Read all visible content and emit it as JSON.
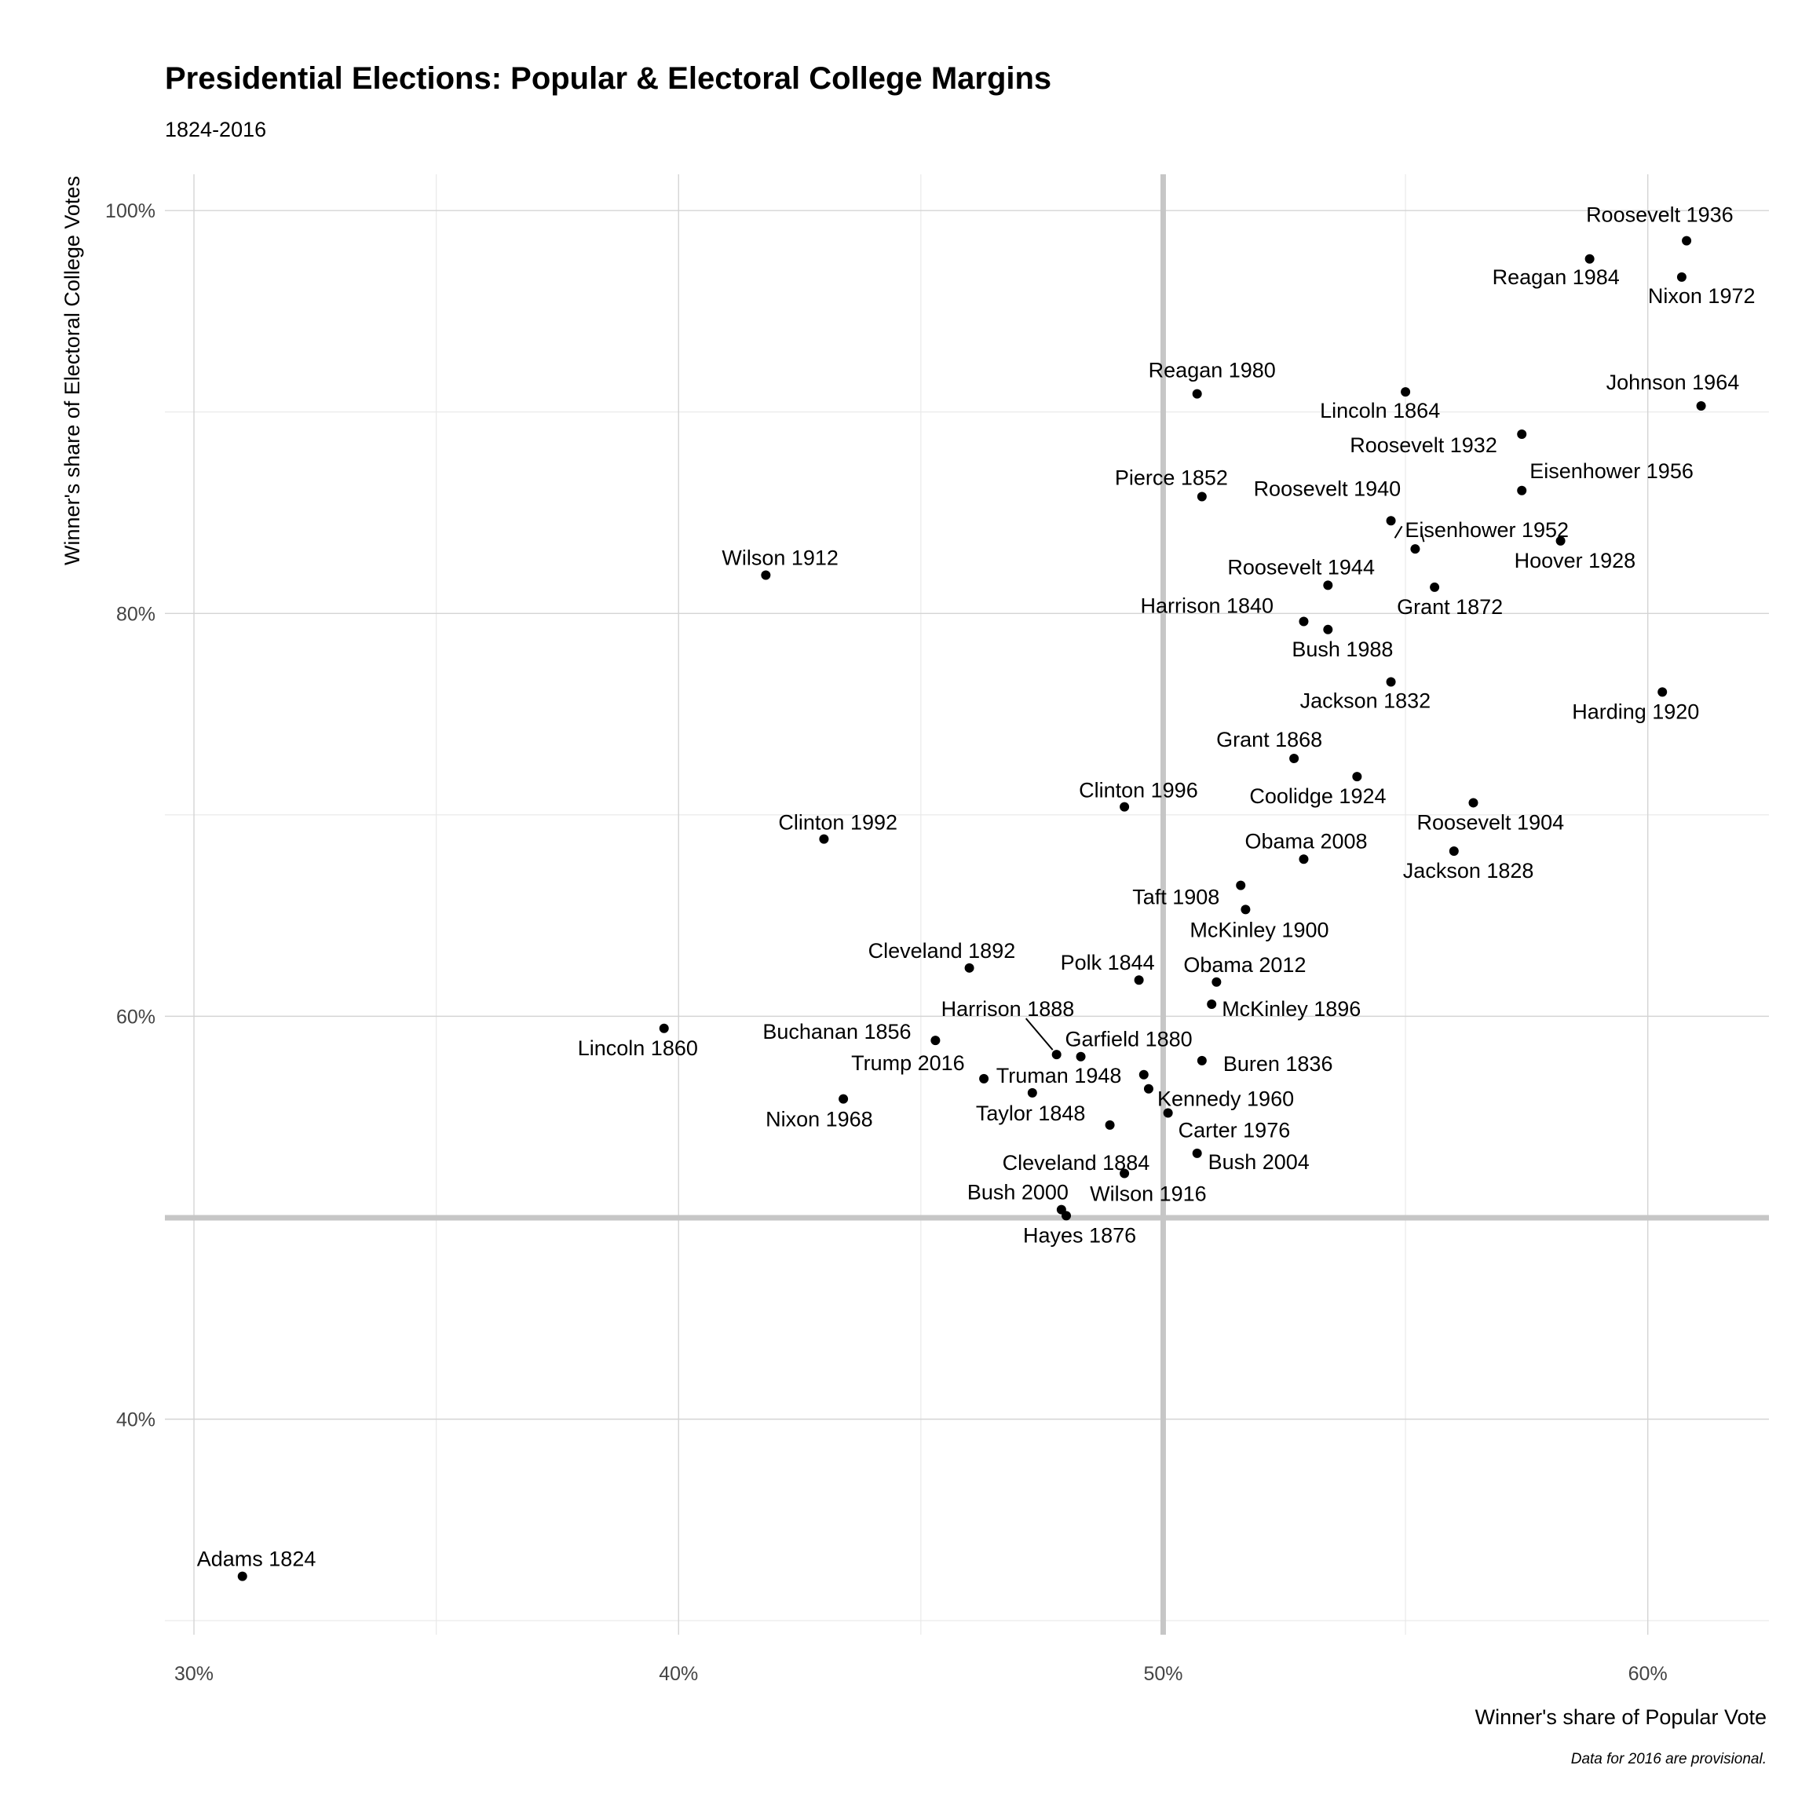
{
  "chart_data": {
    "type": "scatter",
    "title": "Presidential Elections: Popular & Electoral College Margins",
    "subtitle": "1824-2016",
    "xlabel": "Winner's share of Popular Vote",
    "ylabel": "Winner's share of Electoral College Votes",
    "caption": "Data for 2016 are provisional.",
    "xlim": [
      29.4,
      62.5
    ],
    "ylim": [
      29.3,
      101.8
    ],
    "x_ticks": [
      30,
      40,
      50,
      60
    ],
    "x_tick_labels": [
      "30%",
      "40%",
      "50%",
      "60%"
    ],
    "y_ticks": [
      40,
      60,
      80,
      100
    ],
    "y_tick_labels": [
      "40%",
      "60%",
      "80%",
      "100%"
    ],
    "grid": true,
    "reference_lines": {
      "x": 50,
      "y": 50
    },
    "points": [
      {
        "label": "Roosevelt 1936",
        "x": 60.8,
        "y": 98.5
      },
      {
        "label": "Reagan 1984",
        "x": 58.8,
        "y": 97.6
      },
      {
        "label": "Nixon 1972",
        "x": 60.7,
        "y": 96.7
      },
      {
        "label": "Johnson 1964",
        "x": 61.1,
        "y": 90.3
      },
      {
        "label": "Reagan 1980",
        "x": 50.7,
        "y": 90.9
      },
      {
        "label": "Lincoln 1864",
        "x": 55.0,
        "y": 91.0
      },
      {
        "label": "Roosevelt 1932",
        "x": 57.4,
        "y": 88.9
      },
      {
        "label": "Eisenhower 1956",
        "x": 57.4,
        "y": 86.1
      },
      {
        "label": "Pierce 1852",
        "x": 50.8,
        "y": 85.8
      },
      {
        "label": "Roosevelt 1940",
        "x": 54.7,
        "y": 84.6
      },
      {
        "label": "Eisenhower 1952",
        "x": 55.2,
        "y": 83.2
      },
      {
        "label": "Hoover 1928",
        "x": 58.2,
        "y": 83.6
      },
      {
        "label": "Wilson 1912",
        "x": 41.8,
        "y": 81.9
      },
      {
        "label": "Roosevelt 1944",
        "x": 53.4,
        "y": 81.4
      },
      {
        "label": "Grant 1872",
        "x": 55.6,
        "y": 81.3
      },
      {
        "label": "Harrison 1840",
        "x": 52.9,
        "y": 79.6
      },
      {
        "label": "Bush 1988",
        "x": 53.4,
        "y": 79.2
      },
      {
        "label": "Jackson 1832",
        "x": 54.7,
        "y": 76.6
      },
      {
        "label": "Harding 1920",
        "x": 60.3,
        "y": 76.1
      },
      {
        "label": "Grant 1868",
        "x": 52.7,
        "y": 72.8
      },
      {
        "label": "Coolidge 1924",
        "x": 54.0,
        "y": 71.9
      },
      {
        "label": "Roosevelt 1904",
        "x": 56.4,
        "y": 70.6
      },
      {
        "label": "Clinton 1996",
        "x": 49.2,
        "y": 70.4
      },
      {
        "label": "Clinton 1992",
        "x": 43.0,
        "y": 68.8
      },
      {
        "label": "Jackson 1828",
        "x": 56.0,
        "y": 68.2
      },
      {
        "label": "Obama 2008",
        "x": 52.9,
        "y": 67.8
      },
      {
        "label": "Taft 1908",
        "x": 51.6,
        "y": 66.5
      },
      {
        "label": "McKinley 1900",
        "x": 51.7,
        "y": 65.3
      },
      {
        "label": "Cleveland 1892",
        "x": 46.0,
        "y": 62.4
      },
      {
        "label": "Polk 1844",
        "x": 49.5,
        "y": 61.8
      },
      {
        "label": "Obama 2012",
        "x": 51.1,
        "y": 61.7
      },
      {
        "label": "McKinley 1896",
        "x": 51.0,
        "y": 60.6
      },
      {
        "label": "Lincoln 1860",
        "x": 39.7,
        "y": 59.4
      },
      {
        "label": "Buchanan 1856",
        "x": 45.3,
        "y": 58.8
      },
      {
        "label": "Harrison 1888",
        "x": 47.8,
        "y": 58.1
      },
      {
        "label": "Garfield 1880",
        "x": 48.3,
        "y": 58.0
      },
      {
        "label": "Buren 1836",
        "x": 50.8,
        "y": 57.8
      },
      {
        "label": "Truman 1948",
        "x": 49.6,
        "y": 57.1
      },
      {
        "label": "Trump 2016",
        "x": 46.3,
        "y": 56.9
      },
      {
        "label": "Kennedy 1960",
        "x": 49.7,
        "y": 56.4
      },
      {
        "label": "Taylor 1848",
        "x": 47.3,
        "y": 56.2
      },
      {
        "label": "Nixon 1968",
        "x": 43.4,
        "y": 55.9
      },
      {
        "label": "Carter 1976",
        "x": 50.1,
        "y": 55.2
      },
      {
        "label": "Cleveland 1884",
        "x": 48.9,
        "y": 54.6
      },
      {
        "label": "Bush 2004",
        "x": 50.7,
        "y": 53.2
      },
      {
        "label": "Wilson 1916",
        "x": 49.2,
        "y": 52.2
      },
      {
        "label": "Bush 2000",
        "x": 47.9,
        "y": 50.4
      },
      {
        "label": "Hayes 1876",
        "x": 48.0,
        "y": 50.1
      },
      {
        "label": "Adams 1824",
        "x": 31.0,
        "y": 32.2
      }
    ]
  }
}
